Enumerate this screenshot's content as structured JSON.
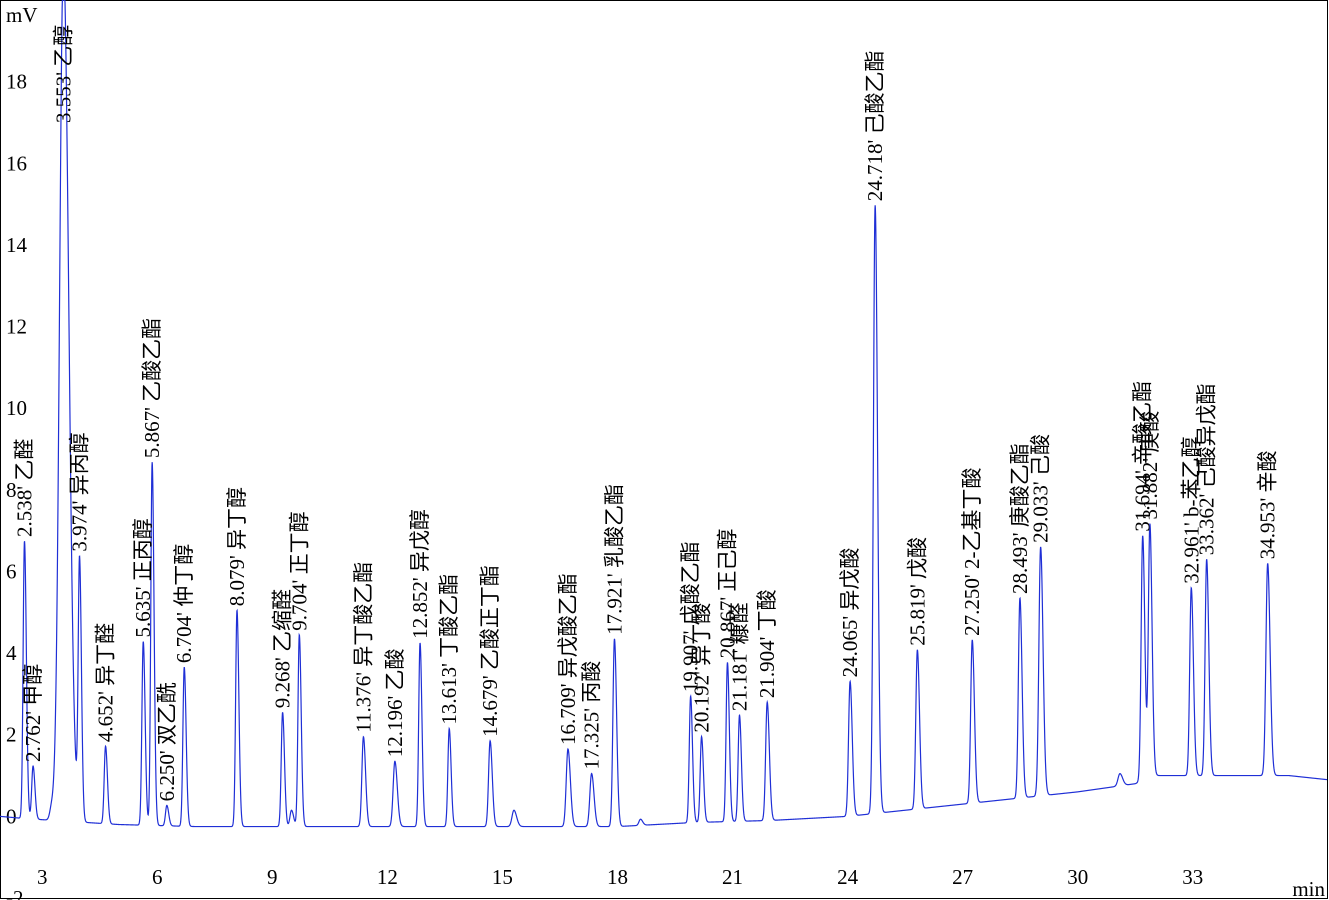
{
  "colors": {
    "trace": "#1f2fd6",
    "frame": "#000000",
    "background": "#ffffff"
  },
  "chart_data": {
    "type": "line",
    "title": "",
    "xlabel": "min",
    "ylabel": "mV",
    "xlim": [
      1.9,
      36.5
    ],
    "ylim": [
      -2,
      20
    ],
    "x_ticks": [
      3,
      6,
      9,
      12,
      15,
      18,
      21,
      24,
      27,
      30,
      33
    ],
    "y_ticks": [
      -2,
      0,
      2,
      4,
      6,
      8,
      10,
      12,
      14,
      16,
      18
    ],
    "grid": false,
    "legend": "none",
    "baseline": [
      [
        1.9,
        0.0
      ],
      [
        2.5,
        -0.05
      ],
      [
        3.3,
        -0.1
      ],
      [
        5.0,
        -0.2
      ],
      [
        7.0,
        -0.25
      ],
      [
        9.0,
        -0.25
      ],
      [
        12.0,
        -0.25
      ],
      [
        15.0,
        -0.25
      ],
      [
        18.0,
        -0.25
      ],
      [
        20.0,
        -0.15
      ],
      [
        22.0,
        -0.1
      ],
      [
        24.0,
        0.0
      ],
      [
        26.0,
        0.2
      ],
      [
        28.0,
        0.4
      ],
      [
        30.0,
        0.6
      ],
      [
        31.5,
        0.8
      ],
      [
        32.0,
        1.0
      ],
      [
        33.5,
        1.0
      ],
      [
        34.5,
        1.0
      ],
      [
        35.5,
        1.0
      ],
      [
        36.5,
        0.9
      ]
    ],
    "peaks": [
      {
        "rt": "2.538'",
        "name": "乙醛",
        "x": 2.538,
        "height": 6.8,
        "width": 0.035
      },
      {
        "rt": "2.762'",
        "name": "甲醇",
        "x": 2.762,
        "height": 1.3,
        "width": 0.035
      },
      {
        "rt": "3.553'",
        "name": "乙醇",
        "x": 3.553,
        "height": 21.0,
        "width": 0.1
      },
      {
        "rt": "3.974'",
        "name": "异丙醇",
        "x": 3.974,
        "height": 6.3,
        "width": 0.035
      },
      {
        "rt": "4.652'",
        "name": "异丁醛",
        "x": 4.652,
        "height": 1.9,
        "width": 0.035
      },
      {
        "rt": "5.635'",
        "name": "正丙醇",
        "x": 5.635,
        "height": 4.5,
        "width": 0.035
      },
      {
        "rt": "5.867'",
        "name": "乙酸乙酯",
        "x": 5.867,
        "height": 8.9,
        "width": 0.035
      },
      {
        "rt": "6.250'",
        "name": "双乙酰",
        "x": 6.25,
        "height": 0.5,
        "width": 0.035
      },
      {
        "rt": "6.704'",
        "name": "仲丁醇",
        "x": 6.704,
        "height": 3.9,
        "width": 0.035
      },
      {
        "rt": "8.079'",
        "name": "异丁醇",
        "x": 8.079,
        "height": 5.3,
        "width": 0.035
      },
      {
        "rt": "9.268'",
        "name": "乙缩醛",
        "x": 9.268,
        "height": 2.8,
        "width": 0.035
      },
      {
        "rt": "9.704'",
        "name": "正丁醇",
        "x": 9.704,
        "height": 4.7,
        "width": 0.035
      },
      {
        "rt": "11.376'",
        "name": "异丁酸乙酯",
        "x": 11.376,
        "height": 2.2,
        "width": 0.04
      },
      {
        "rt": "12.196'",
        "name": "乙酸",
        "x": 12.196,
        "height": 1.6,
        "width": 0.045
      },
      {
        "rt": "12.852'",
        "name": "异戊醇",
        "x": 12.852,
        "height": 4.5,
        "width": 0.035
      },
      {
        "rt": "13.613'",
        "name": "丁酸乙酯",
        "x": 13.613,
        "height": 2.4,
        "width": 0.035
      },
      {
        "rt": "14.679'",
        "name": "乙酸正丁酯",
        "x": 14.679,
        "height": 2.1,
        "width": 0.04
      },
      {
        "rt": "16.709'",
        "name": "异戊酸乙酯",
        "x": 16.709,
        "height": 1.9,
        "width": 0.045
      },
      {
        "rt": "17.325'",
        "name": "丙酸",
        "x": 17.325,
        "height": 1.3,
        "width": 0.045
      },
      {
        "rt": "17.921'",
        "name": "乳酸乙酯",
        "x": 17.921,
        "height": 4.6,
        "width": 0.04
      },
      {
        "rt": "19.907'",
        "name": "戊酸乙酯",
        "x": 19.907,
        "height": 3.1,
        "width": 0.035
      },
      {
        "rt": "20.192'",
        "name": "异丁酸",
        "x": 20.192,
        "height": 2.1,
        "width": 0.035
      },
      {
        "rt": "20.867'",
        "name": "正己醇",
        "x": 20.867,
        "height": 3.9,
        "width": 0.035
      },
      {
        "rt": "21.181'",
        "name": "糠醛",
        "x": 21.181,
        "height": 2.6,
        "width": 0.035
      },
      {
        "rt": "21.904'",
        "name": "丁酸",
        "x": 21.904,
        "height": 2.9,
        "width": 0.04
      },
      {
        "rt": "24.065'",
        "name": "异戊酸",
        "x": 24.065,
        "height": 3.3,
        "width": 0.04
      },
      {
        "rt": "24.718'",
        "name": "己酸乙酯",
        "x": 24.718,
        "height": 14.9,
        "width": 0.045
      },
      {
        "rt": "25.819'",
        "name": "戊酸",
        "x": 25.819,
        "height": 3.9,
        "width": 0.04
      },
      {
        "rt": "27.250'",
        "name": "2-乙基丁酸",
        "x": 27.25,
        "height": 4.0,
        "width": 0.04
      },
      {
        "rt": "28.493'",
        "name": "庚酸乙酯",
        "x": 28.493,
        "height": 4.9,
        "width": 0.04
      },
      {
        "rt": "29.033'",
        "name": "己酸",
        "x": 29.033,
        "height": 6.1,
        "width": 0.045
      },
      {
        "rt": "31.694'",
        "name": "辛酸乙酯",
        "x": 31.694,
        "height": 6.0,
        "width": 0.04
      },
      {
        "rt": "31.882'",
        "name": "庚酸",
        "x": 31.882,
        "height": 6.2,
        "width": 0.04
      },
      {
        "rt": "32.961'",
        "name": "b-苯乙醇",
        "x": 32.961,
        "height": 4.6,
        "width": 0.04
      },
      {
        "rt": "33.362'",
        "name": "己酸异戊酯",
        "x": 33.362,
        "height": 5.3,
        "width": 0.04
      },
      {
        "rt": "34.953'",
        "name": "辛酸",
        "x": 34.953,
        "height": 5.2,
        "width": 0.045
      }
    ],
    "minor_peaks": [
      {
        "x": 3.25,
        "height": 0.3,
        "width": 0.05
      },
      {
        "x": 9.5,
        "height": 0.4,
        "width": 0.04
      },
      {
        "x": 15.3,
        "height": 0.4,
        "width": 0.05
      },
      {
        "x": 18.6,
        "height": 0.15,
        "width": 0.04
      },
      {
        "x": 31.1,
        "height": 0.3,
        "width": 0.05
      }
    ]
  }
}
